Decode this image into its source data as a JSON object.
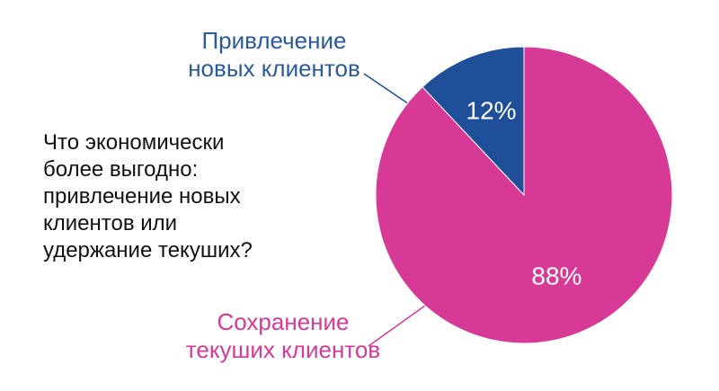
{
  "chart_data": {
    "type": "pie",
    "annotation": "Что экономически\nболее выгодно:\nпривлечение новых\nклиентов или\nудержание текуших?",
    "categories": [
      "Привлечение\nновых клиентов",
      "Сохранение\nтекуших клиентов"
    ],
    "values": [
      12,
      88
    ],
    "value_labels": [
      "12%",
      "88%"
    ],
    "colors": [
      "#1f4f99",
      "#d63a96"
    ],
    "label_colors": [
      "#2a5a9a",
      "#d63a96"
    ]
  }
}
